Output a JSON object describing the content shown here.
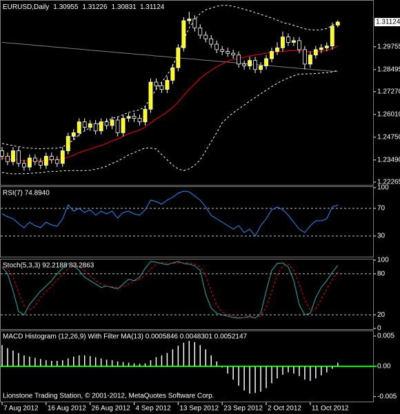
{
  "footer": "Lionstone Trading Station, © 2001-2012, MetaQuotes Software Corp.",
  "chart_data": [
    {
      "type": "candlestick",
      "title": "EURUSD,Daily",
      "categories": [
        "7 Aug 2012",
        null,
        null,
        null,
        null,
        null,
        null,
        null,
        "16 Aug 2012",
        null,
        null,
        null,
        null,
        null,
        null,
        null,
        "26 Aug 2012",
        null,
        null,
        null,
        null,
        null,
        null,
        null,
        "4 Sep 2012",
        null,
        null,
        null,
        null,
        null,
        null,
        null,
        "13 Sep 2012",
        null,
        null,
        null,
        null,
        null,
        null,
        null,
        "23 Sep 2012",
        null,
        null,
        null,
        null,
        null,
        null,
        null,
        "2 Oct 2012",
        null,
        null,
        null,
        null,
        null,
        null,
        null,
        "11 Oct 2012",
        null,
        null,
        null,
        null,
        null
      ],
      "open": [
        1.24,
        1.237,
        1.234,
        1.24,
        1.233,
        1.231,
        1.236,
        1.234,
        1.232,
        1.237,
        1.235,
        1.233,
        1.24,
        1.248,
        1.25,
        1.256,
        1.253,
        1.255,
        1.251,
        1.256,
        1.254,
        1.257,
        1.25,
        1.258,
        1.259,
        1.258,
        1.256,
        1.263,
        1.278,
        1.276,
        1.274,
        1.279,
        1.286,
        1.297,
        1.312,
        1.313,
        1.308,
        1.304,
        1.302,
        1.299,
        1.296,
        1.295,
        1.294,
        1.293,
        1.288,
        1.287,
        1.29,
        1.285,
        1.287,
        1.291,
        1.295,
        1.297,
        1.303,
        1.3,
        1.301,
        1.296,
        1.288,
        1.293,
        1.296,
        1.297,
        1.298,
        1.30955
      ],
      "high": [
        1.242,
        1.239,
        1.242,
        1.242,
        1.235,
        1.238,
        1.238,
        1.236,
        1.239,
        1.239,
        1.237,
        1.242,
        1.25,
        1.252,
        1.258,
        1.258,
        1.257,
        1.257,
        1.258,
        1.258,
        1.259,
        1.259,
        1.26,
        1.261,
        1.261,
        1.26,
        1.265,
        1.28,
        1.28,
        1.278,
        1.281,
        1.288,
        1.299,
        1.314,
        1.317,
        1.315,
        1.31,
        1.306,
        1.304,
        1.301,
        1.298,
        1.297,
        1.296,
        1.295,
        1.29,
        1.292,
        1.292,
        1.289,
        1.293,
        1.297,
        1.3,
        1.306,
        1.305,
        1.303,
        1.303,
        1.298,
        1.295,
        1.298,
        1.299,
        1.3,
        1.311,
        1.31226
      ],
      "low": [
        1.235,
        1.232,
        1.232,
        1.231,
        1.229,
        1.229,
        1.232,
        1.23,
        1.23,
        1.233,
        1.231,
        1.231,
        1.238,
        1.246,
        1.248,
        1.251,
        1.251,
        1.249,
        1.249,
        1.252,
        1.252,
        1.248,
        1.248,
        1.256,
        1.256,
        1.254,
        1.254,
        1.261,
        1.274,
        1.272,
        1.272,
        1.277,
        1.284,
        1.295,
        1.31,
        1.306,
        1.302,
        1.3,
        1.297,
        1.294,
        1.293,
        1.292,
        1.291,
        1.286,
        1.285,
        1.285,
        1.283,
        1.283,
        1.285,
        1.289,
        1.293,
        1.295,
        1.298,
        1.298,
        1.294,
        1.285,
        1.286,
        1.291,
        1.294,
        1.295,
        1.296,
        1.30831
      ],
      "close": [
        1.237,
        1.234,
        1.24,
        1.233,
        1.231,
        1.236,
        1.234,
        1.232,
        1.237,
        1.235,
        1.233,
        1.24,
        1.248,
        1.25,
        1.256,
        1.253,
        1.255,
        1.251,
        1.256,
        1.254,
        1.257,
        1.25,
        1.258,
        1.259,
        1.258,
        1.256,
        1.263,
        1.278,
        1.276,
        1.274,
        1.279,
        1.286,
        1.297,
        1.312,
        1.313,
        1.308,
        1.304,
        1.302,
        1.299,
        1.296,
        1.295,
        1.294,
        1.293,
        1.288,
        1.287,
        1.29,
        1.285,
        1.287,
        1.291,
        1.295,
        1.297,
        1.303,
        1.3,
        1.301,
        1.296,
        1.288,
        1.293,
        1.296,
        1.297,
        1.298,
        1.309,
        1.31124
      ],
      "bull_color": "#ffff00",
      "bear_color": "#000000",
      "outline_color": "#ffffff",
      "overlays": [
        {
          "color": "#808080",
          "dashed": false,
          "values": [
            1.3,
            1.2997,
            1.2995,
            1.2992,
            1.2989,
            1.2987,
            1.2984,
            1.2981,
            1.2979,
            1.2976,
            1.2973,
            1.2971,
            1.2968,
            1.2965,
            1.2963,
            1.296,
            1.2957,
            1.2955,
            1.2952,
            1.2949,
            1.2947,
            1.2944,
            1.2941,
            1.2939,
            1.2936,
            1.2933,
            1.2931,
            1.2928,
            1.2925,
            1.2923,
            1.292,
            1.2917,
            1.2915,
            1.2912,
            1.2909,
            1.2907,
            1.2904,
            1.2901,
            1.2899,
            1.2896,
            1.2894,
            1.2891,
            1.2888,
            1.2886,
            1.2883,
            1.288,
            1.2878,
            1.2875,
            1.2872,
            1.287,
            1.2867,
            1.2864,
            1.2862,
            1.2859,
            1.2856,
            1.2854,
            1.2851,
            1.2848,
            1.2846,
            1.2843,
            1.284,
            1.2838
          ]
        },
        {
          "color": "#ff0000",
          "dashed": false,
          "values": [
            1.236,
            1.2355,
            1.235,
            1.2348,
            1.2345,
            1.2345,
            1.2345,
            1.2345,
            1.2348,
            1.235,
            1.235,
            1.2355,
            1.2365,
            1.2375,
            1.239,
            1.24,
            1.241,
            1.242,
            1.243,
            1.244,
            1.2455,
            1.2465,
            1.248,
            1.2495,
            1.2505,
            1.2515,
            1.253,
            1.2555,
            1.2575,
            1.2595,
            1.2615,
            1.264,
            1.267,
            1.2705,
            1.274,
            1.277,
            1.28,
            1.2825,
            1.2845,
            1.2865,
            1.288,
            1.2895,
            1.2905,
            1.2912,
            1.2918,
            1.2925,
            1.293,
            1.2935,
            1.294,
            1.2945,
            1.2948,
            1.295,
            1.2953,
            1.2955,
            1.2955,
            1.295,
            1.2948,
            1.2948,
            1.295,
            1.2955,
            1.2965,
            1.298
          ]
        },
        {
          "color": "#ffffff",
          "dashed": true,
          "values": [
            1.244,
            1.2435,
            1.2428,
            1.2423,
            1.2417,
            1.2415,
            1.2413,
            1.2411,
            1.2413,
            1.2414,
            1.2414,
            1.2421,
            1.244,
            1.246,
            1.249,
            1.251,
            1.2528,
            1.2542,
            1.2555,
            1.2565,
            1.258,
            1.2587,
            1.26,
            1.2613,
            1.262,
            1.2627,
            1.2645,
            1.2695,
            1.274,
            1.278,
            1.282,
            1.287,
            1.2935,
            1.3015,
            1.308,
            1.3125,
            1.316,
            1.318,
            1.319,
            1.32,
            1.3205,
            1.3205,
            1.32,
            1.3192,
            1.3183,
            1.3175,
            1.3165,
            1.3155,
            1.3145,
            1.3135,
            1.3123,
            1.311,
            1.3103,
            1.3095,
            1.3085,
            1.3075,
            1.307,
            1.3068,
            1.307,
            1.3077,
            1.3093,
            1.3115
          ]
        },
        {
          "color": "#ffffff",
          "dashed": true,
          "values": [
            1.228,
            1.2275,
            1.2272,
            1.2273,
            1.2273,
            1.2275,
            1.2277,
            1.2279,
            1.2283,
            1.2286,
            1.2286,
            1.2289,
            1.229,
            1.229,
            1.229,
            1.229,
            1.2292,
            1.2298,
            1.2305,
            1.2315,
            1.233,
            1.2343,
            1.236,
            1.2377,
            1.239,
            1.2403,
            1.2415,
            1.2415,
            1.241,
            1.238,
            1.235,
            1.232,
            1.23,
            1.229,
            1.23,
            1.232,
            1.235,
            1.24,
            1.245,
            1.25,
            1.2555,
            1.2585,
            1.261,
            1.2632,
            1.2653,
            1.2675,
            1.2695,
            1.2715,
            1.2735,
            1.2755,
            1.2773,
            1.279,
            1.2803,
            1.2815,
            1.2825,
            1.2825,
            1.2826,
            1.2828,
            1.283,
            1.2833,
            1.2837,
            1.2845
          ]
        }
      ],
      "ylim": [
        1.2211,
        1.3227
      ],
      "yticks": [
        1.29755,
        1.28495,
        {
          "value": 1.2727,
          "label": "1.27270"
        },
        {
          "value": 1.2601,
          "label": "1.26010"
        },
        {
          "value": 1.2475,
          "label": "1.24750"
        },
        {
          "value": 1.2349,
          "label": "1.23490"
        },
        1.22265
      ]
    },
    {
      "type": "line",
      "title": "RSI(7) 74.8940",
      "series": [
        {
          "color": "#1e90ff",
          "dashed": false,
          "values": [
            62,
            58,
            55,
            48,
            42,
            50,
            45,
            42,
            50,
            46,
            44,
            55,
            75,
            66,
            70,
            64,
            68,
            60,
            66,
            62,
            66,
            56,
            64,
            66,
            62,
            60,
            68,
            82,
            80,
            76,
            82,
            86,
            92,
            95,
            94,
            88,
            82,
            72,
            60,
            55,
            50,
            45,
            40,
            45,
            35,
            40,
            30,
            45,
            55,
            68,
            72,
            68,
            60,
            50,
            40,
            35,
            45,
            52,
            52,
            55,
            72,
            74.894
          ]
        }
      ],
      "ylim": [
        0,
        100
      ],
      "yticks": [
        100,
        70,
        30
      ]
    },
    {
      "type": "line",
      "title": "Stoch(5,3,3) 92.2188 83.2863",
      "series": [
        {
          "color": "#20b2aa",
          "dashed": false,
          "values": [
            90,
            80,
            55,
            25,
            20,
            35,
            45,
            55,
            62,
            70,
            80,
            88,
            95,
            92,
            85,
            75,
            70,
            65,
            60,
            62,
            60,
            58,
            65,
            72,
            70,
            75,
            88,
            98,
            97,
            95,
            93,
            96,
            98,
            95,
            94,
            92,
            85,
            50,
            30,
            22,
            20,
            18,
            16,
            15,
            16,
            18,
            15,
            22,
            55,
            85,
            95,
            96,
            90,
            70,
            35,
            20,
            22,
            45,
            60,
            70,
            82,
            92.2188
          ]
        },
        {
          "color": "#ff0000",
          "dashed": true,
          "values": [
            90,
            88,
            75,
            53,
            33,
            27,
            33,
            45,
            54,
            62,
            71,
            79,
            88,
            92,
            91,
            84,
            77,
            70,
            65,
            62,
            61,
            60,
            61,
            65,
            69,
            72,
            78,
            87,
            94,
            97,
            95,
            95,
            96,
            96,
            96,
            94,
            90,
            76,
            55,
            34,
            24,
            20,
            18,
            16,
            16,
            16,
            16,
            18,
            31,
            54,
            78,
            92,
            94,
            85,
            65,
            42,
            26,
            29,
            42,
            58,
            71,
            83.2863
          ]
        }
      ],
      "ylim": [
        0,
        100
      ],
      "yticks": [
        100,
        80,
        20,
        0
      ]
    },
    {
      "type": "histogram",
      "title": "MACD Histogram (12,26,9) With Filter MA(13) 0.0005846 0.0048301 0.0052147",
      "color": "#ffffff",
      "zero_color": "#00ff00",
      "values": [
        0.0035,
        0.003,
        0.0026,
        0.0022,
        0.0018,
        0.0016,
        0.0014,
        0.0012,
        0.001,
        0.0009,
        0.0009,
        0.001,
        0.0013,
        0.0016,
        0.0018,
        0.0018,
        0.0017,
        0.0015,
        0.0013,
        0.0011,
        0.001,
        0.0008,
        0.0007,
        0.0006,
        0.0005,
        0.0004,
        0.0005,
        0.001,
        0.0015,
        0.0018,
        0.0022,
        0.0028,
        0.0034,
        0.0039,
        0.0042,
        0.004,
        0.0035,
        0.0028,
        0.0018,
        0.0008,
        -0.0002,
        -0.0012,
        -0.0022,
        -0.0032,
        -0.004,
        -0.0045,
        -0.0044,
        -0.0042,
        -0.0036,
        -0.0028,
        -0.002,
        -0.0014,
        -0.001,
        -0.0012,
        -0.0016,
        -0.0022,
        -0.0024,
        -0.002,
        -0.0015,
        -0.001,
        -0.0004,
        0.0005846
      ],
      "ylim": [
        -0.0056,
        0.0058
      ],
      "yticks": [
        0.005,
        {
          "value": 0,
          "label": "0.00"
        },
        -0.005
      ]
    }
  ]
}
